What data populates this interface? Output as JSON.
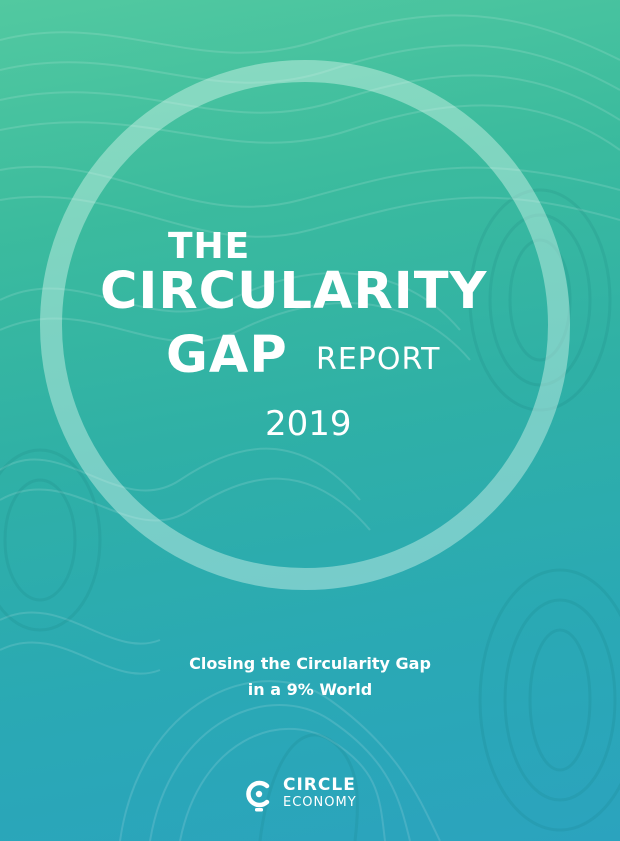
{
  "cover": {
    "title_the": "THE",
    "title_main": "CIRCULARITY",
    "title_gap": "GAP",
    "title_report": "REPORT",
    "year": "2019",
    "subtitle_line1": "Closing the Circularity Gap",
    "subtitle_line2": "in a 9% World"
  },
  "logo": {
    "line1": "CIRCLE",
    "line2": "ECONOMY",
    "icon": "circle-economy-logo-icon"
  },
  "colors": {
    "top": "#52c9a0",
    "middle": "#2fb0a6",
    "bottom": "#2ba3be",
    "text": "#ffffff"
  }
}
